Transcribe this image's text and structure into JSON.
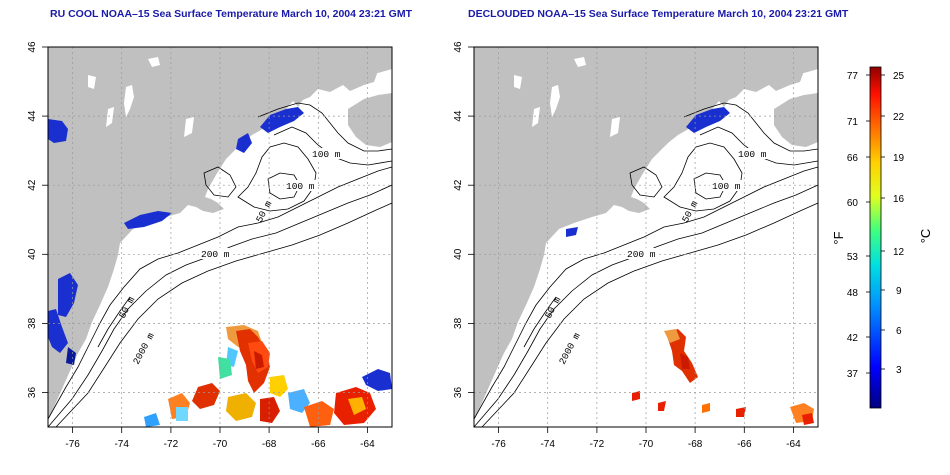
{
  "titles": {
    "left": "RU COOL NOAA–15 Sea Surface Temperature March 10, 2004 23:21 GMT",
    "right": "DECLOUDED NOAA–15 Sea Surface Temperature March 10, 2004 23:21 GMT"
  },
  "axes": {
    "lon_ticks": [
      "-76",
      "-74",
      "-72",
      "-70",
      "-68",
      "-66",
      "-64"
    ],
    "lat_ticks": [
      "46",
      "44",
      "42",
      "40",
      "38",
      "36"
    ],
    "lon_range": [
      -77,
      -63
    ],
    "lat_range": [
      35,
      46
    ]
  },
  "contours": {
    "left": [
      "100 m",
      "100 m",
      "50 m",
      "200 m",
      "50 m",
      "2000 m"
    ],
    "right": [
      "100 m",
      "100 m",
      "50 m",
      "200 m",
      "50 m",
      "2000 m"
    ]
  },
  "colorbar": {
    "fahrenheit_ticks": [
      "77",
      "71",
      "66",
      "60",
      "53",
      "48",
      "42",
      "37"
    ],
    "celsius_ticks": [
      "25",
      "22",
      "19",
      "16",
      "12",
      "9",
      "6",
      "3"
    ],
    "unit_f": "°F",
    "unit_c": "°C",
    "range_c": [
      0,
      26
    ]
  },
  "colors": {
    "land": "#c0c0c0",
    "ocean": "#ffffff",
    "title": "#1a1aa8",
    "cold": "#0000cc",
    "warm": "#dd2200"
  }
}
